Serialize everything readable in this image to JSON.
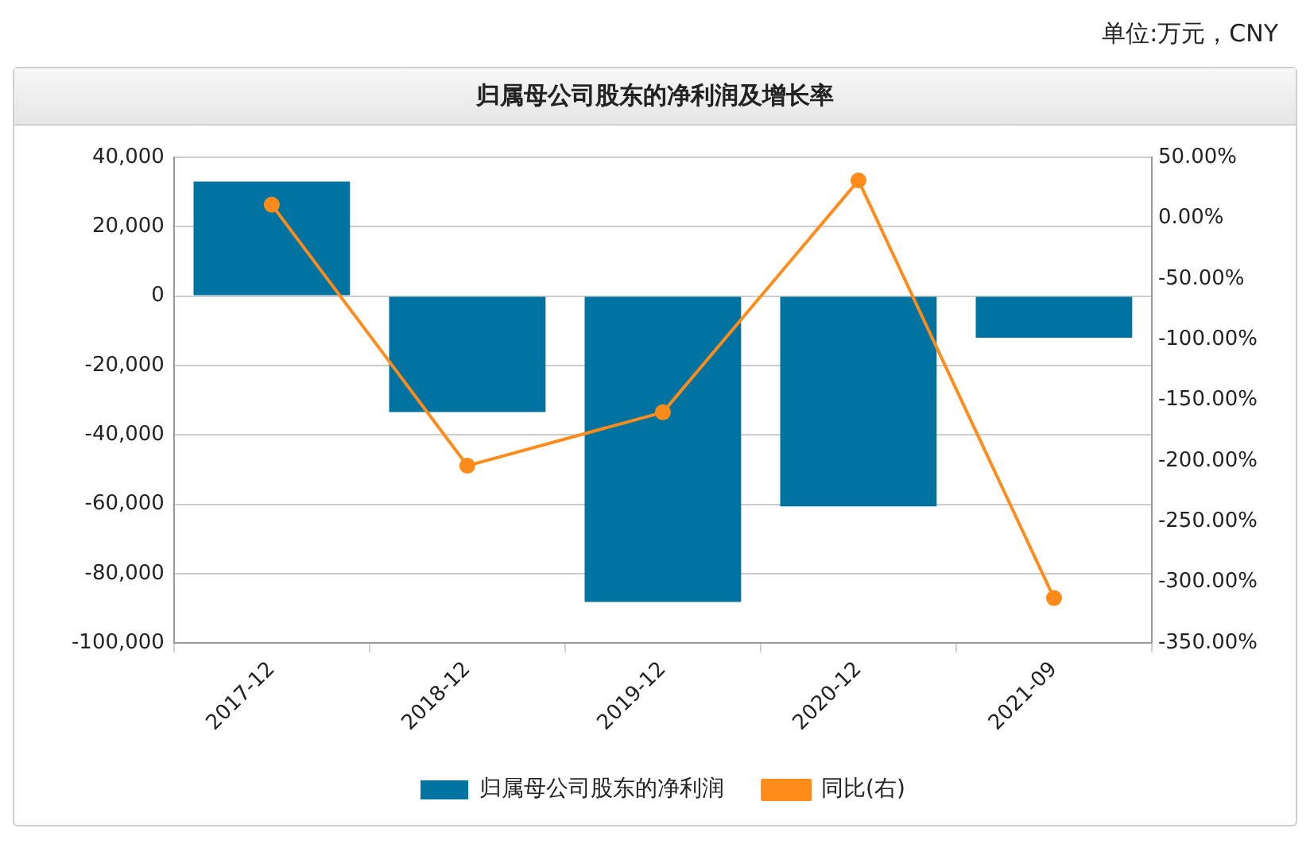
{
  "chart_data": {
    "type": "bar",
    "title": "归属母公司股东的净利润及增长率",
    "annotations": [
      "单位:万元，CNY"
    ],
    "categories": [
      "2017-12",
      "2018-12",
      "2019-12",
      "2020-12",
      "2021-09"
    ],
    "series": [
      {
        "name": "归属母公司股东的净利润",
        "color": "#0073a0",
        "values": [
          33000,
          -33400,
          -88200,
          -60600,
          -12000
        ]
      },
      {
        "name": "同比(右)",
        "type": "line",
        "axis": "y2",
        "color": "#ff8c1a",
        "values": [
          11,
          -204,
          -160,
          31,
          -313
        ]
      }
    ],
    "ylim": [
      -100000,
      40000
    ],
    "yticks": [
      {
        "value": -100000,
        "label": "-100,000"
      },
      {
        "value": -80000,
        "label": "-80,000"
      },
      {
        "value": -60000,
        "label": "-60,000"
      },
      {
        "value": -40000,
        "label": "-40,000"
      },
      {
        "value": -20000,
        "label": "-20,000"
      },
      {
        "value": 0,
        "label": "0"
      },
      {
        "value": 20000,
        "label": "20,000"
      },
      {
        "value": 40000,
        "label": "40,000"
      }
    ],
    "y2lim": [
      -350,
      50
    ],
    "y2ticks": [
      {
        "value": -350,
        "label": "-350.00%"
      },
      {
        "value": -300,
        "label": "-300.00%"
      },
      {
        "value": -250,
        "label": "-250.00%"
      },
      {
        "value": -200,
        "label": "-200.00%"
      },
      {
        "value": -150,
        "label": "-150.00%"
      },
      {
        "value": -100,
        "label": "-100.00%"
      },
      {
        "value": -50,
        "label": "-50.00%"
      },
      {
        "value": 0,
        "label": "0.00%"
      },
      {
        "value": 50,
        "label": "50.00%"
      }
    ],
    "grid": "y",
    "legend": "bottom",
    "marker": "circle"
  }
}
